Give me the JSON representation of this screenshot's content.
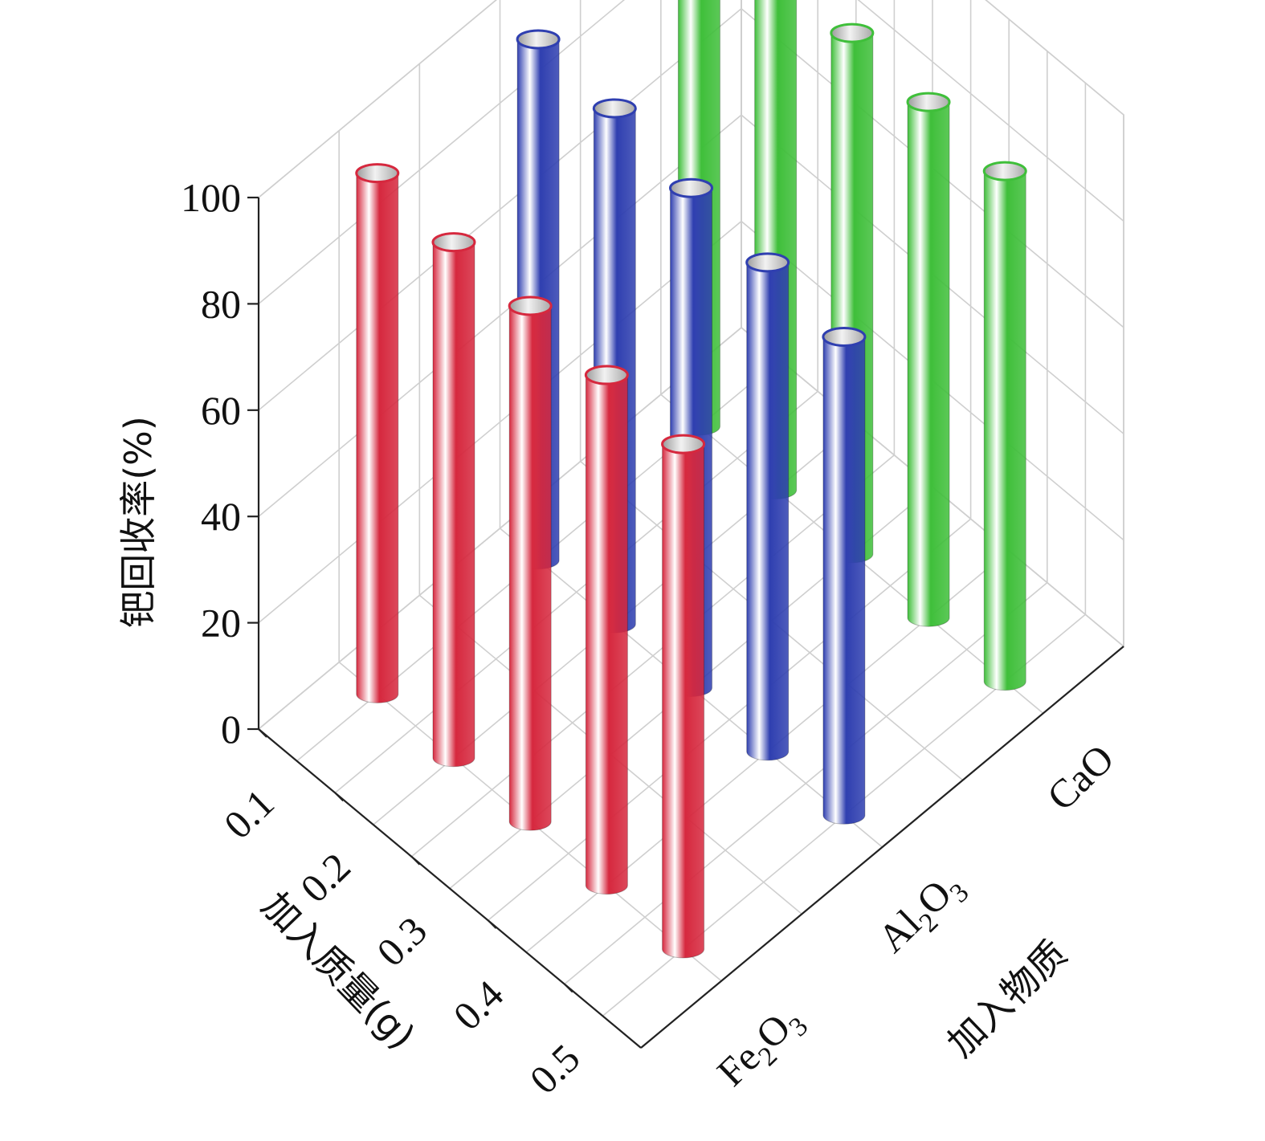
{
  "chart_data": {
    "type": "bar3d",
    "ylabel": "钯回收率(%)",
    "xlabel": "加入质量(g)",
    "zlabel": "加入物质",
    "ylim": [
      0,
      100
    ],
    "y_ticks": [
      "0",
      "20",
      "40",
      "60",
      "80",
      "100"
    ],
    "mass_ticks": [
      "0.1",
      "0.2",
      "0.3",
      "0.4",
      "0.5"
    ],
    "substances": [
      {
        "name": "Fe",
        "sub1": "2",
        "name2": "O",
        "sub2": "3"
      },
      {
        "name": "Al",
        "sub1": "2",
        "name2": "O",
        "sub2": "3"
      },
      {
        "name": "CaO",
        "sub1": "",
        "name2": "",
        "sub2": ""
      }
    ],
    "series": [
      {
        "substance": "Fe2O3",
        "color": "#d6283e",
        "values": [
          98,
          97,
          97,
          96,
          95
        ]
      },
      {
        "substance": "Al2O3",
        "color": "#2f3fb0",
        "values": [
          98,
          97,
          94,
          92,
          90
        ]
      },
      {
        "substance": "CaO",
        "color": "#3fbf3a",
        "values": [
          98,
          98,
          98,
          97,
          96
        ]
      }
    ],
    "grid": true
  }
}
